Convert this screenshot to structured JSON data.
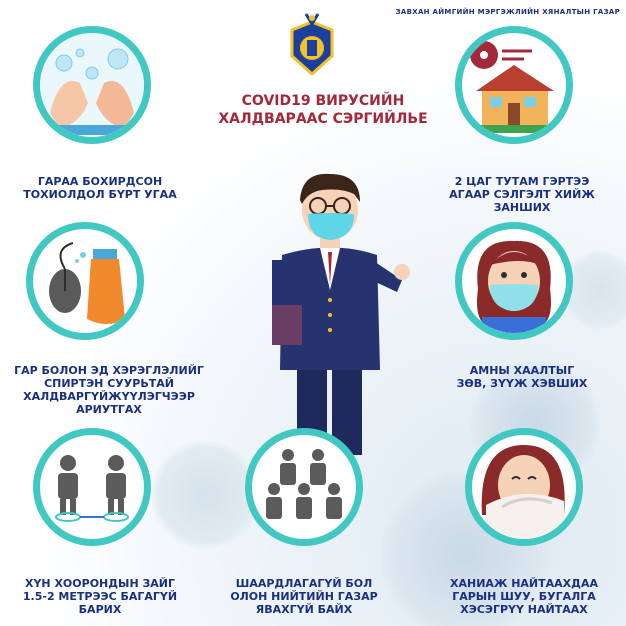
{
  "header": {
    "organization": "ЗАВХАН АЙМГИЙН МЭРГЭЖЛИЙН ХЯНАЛТЫН ГАЗАР",
    "title": "COVID19 ВИРУСИЙН\nХАЛДВАРААС СЭРГИЙЛЬЕ"
  },
  "tips": [
    {
      "label": "ГАРАА БОХИРДСОН\nТОХИОЛДОЛ БҮРТ  УГАА",
      "icon": "hand-washing-icon"
    },
    {
      "label": "2 ЦАГ ТУТАМ ГЭРТЭЭ\nАГААР СЭЛГЭЛТ ХИЙЖ\nЗАНШИХ",
      "icon": "house-ventilation-icon"
    },
    {
      "label": "ГАР БОЛОН ЭД ХЭРЭГЛЭЛИЙГ\nСПИРТЭН СУУРЬТАЙ\nХАЛДВАРГҮЙЖҮҮЛЭГЧЭЭР\nАРИУТГАХ",
      "icon": "disinfect-spray-icon"
    },
    {
      "label": "АМНЫ ХААЛТЫГ\nЗӨВ, ЗҮҮЖ ХЭВШИХ",
      "icon": "face-mask-girl-icon"
    },
    {
      "label": "ХҮН ХООРОНДЫН ЗАЙГ\n1.5-2 МЕТРЭЭС БАГАГҮЙ\nБАРИХ",
      "icon": "social-distance-icon"
    },
    {
      "label": "ШААРДЛАГАГҮЙ БОЛ\nОЛОН НИЙТИЙН ГАЗАР\nЯВАХГҮЙ БАЙХ",
      "icon": "crowd-icon"
    },
    {
      "label": "ХАНИАЖ НАЙТААХДАА\nГАРЫН ШУУ, БУГАЛГА\nХЭСЭГРҮҮ НАЙТААХ",
      "icon": "cough-elbow-icon"
    }
  ],
  "colors": {
    "accent": "#41c8c3",
    "label": "#1b2f80",
    "title": "#a2283a"
  }
}
